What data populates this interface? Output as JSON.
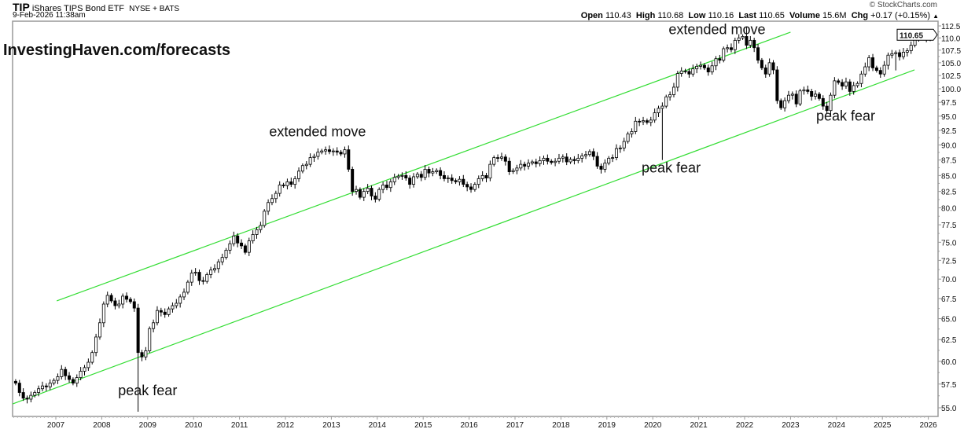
{
  "header": {
    "ticker": "TIP",
    "name": "iShares TIPS Bond ETF",
    "exchange": "NYSE + BATS",
    "datetime": "9-Feb-2026 11:38am",
    "brand": "© StockCharts.com",
    "open_label": "Open",
    "open": "110.43",
    "high_label": "High",
    "high": "110.68",
    "low_label": "Low",
    "low": "110.16",
    "last_label": "Last",
    "last": "110.65",
    "volume_label": "Volume",
    "volume": "15.6M",
    "chg_label": "Chg",
    "chg": "+0.17 (+0.15%)",
    "chg_icon": "triangle-up-icon"
  },
  "watermark": "InvestingHaven.com/forecasts",
  "chart_data": {
    "type": "candlestick",
    "interval": "monthly",
    "start_month": "2006-02",
    "yscale": "log",
    "ylim": [
      55.0,
      112.5
    ],
    "grid": false,
    "y_ticks": [
      "55.0",
      "57.5",
      "60.0",
      "62.5",
      "65.0",
      "67.5",
      "70.0",
      "72.5",
      "75.0",
      "77.5",
      "80.0",
      "82.5",
      "85.0",
      "87.5",
      "90.0",
      "92.5",
      "95.0",
      "97.5",
      "100.0",
      "102.5",
      "105.0",
      "107.5",
      "110.0",
      "112.5"
    ],
    "x_ticks": [
      "2007",
      "2008",
      "2009",
      "2010",
      "2011",
      "2012",
      "2013",
      "2014",
      "2015",
      "2016",
      "2017",
      "2018",
      "2019",
      "2020",
      "2021",
      "2022",
      "2023",
      "2024",
      "2025",
      "2026"
    ],
    "first_open": 57.8,
    "closes": [
      57.6,
      56.6,
      56.0,
      55.9,
      56.3,
      56.6,
      57.0,
      57.3,
      57.2,
      57.6,
      57.9,
      58.3,
      59.1,
      58.4,
      58.0,
      57.6,
      58.2,
      58.9,
      59.3,
      59.9,
      61.0,
      62.8,
      64.5,
      66.8,
      67.9,
      67.2,
      66.6,
      66.8,
      67.8,
      67.4,
      67.1,
      66.3,
      61.0,
      60.5,
      61.2,
      63.8,
      64.5,
      66.0,
      65.8,
      65.5,
      66.2,
      66.6,
      66.9,
      67.7,
      68.3,
      69.6,
      70.8,
      70.9,
      69.8,
      69.7,
      70.6,
      71.2,
      71.4,
      72.3,
      72.9,
      73.9,
      74.8,
      75.9,
      74.9,
      74.5,
      73.6,
      75.2,
      76.1,
      76.8,
      77.4,
      79.5,
      80.8,
      81.4,
      82.2,
      83.5,
      83.4,
      84.0,
      83.6,
      84.5,
      85.7,
      86.6,
      86.8,
      87.9,
      88.1,
      88.8,
      89.0,
      89.2,
      88.9,
      89.0,
      88.8,
      88.5,
      89.2,
      86.0,
      82.5,
      82.8,
      81.6,
      82.5,
      83.0,
      81.8,
      81.3,
      82.8,
      83.5,
      83.1,
      84.0,
      84.7,
      84.9,
      85.0,
      84.6,
      83.6,
      84.8,
      85.2,
      84.7,
      86.0,
      85.4,
      85.6,
      85.8,
      85.0,
      84.5,
      84.6,
      84.2,
      84.0,
      84.4,
      83.6,
      83.2,
      82.8,
      83.6,
      84.5,
      85.0,
      84.6,
      86.8,
      87.9,
      87.8,
      88.0,
      87.3,
      85.6,
      85.8,
      86.2,
      86.8,
      86.5,
      87.0,
      87.2,
      86.9,
      87.4,
      87.8,
      87.3,
      87.1,
      87.3,
      87.8,
      88.0,
      87.2,
      87.6,
      87.4,
      87.8,
      88.2,
      88.4,
      88.9,
      88.1,
      86.5,
      86.0,
      87.0,
      87.8,
      87.9,
      89.4,
      89.5,
      90.6,
      91.9,
      92.3,
      94.1,
      94.0,
      94.2,
      93.9,
      94.3,
      95.6,
      96.4,
      96.8,
      98.5,
      98.9,
      100.3,
      102.9,
      103.4,
      103.3,
      102.8,
      103.8,
      104.3,
      104.5,
      104.0,
      103.2,
      104.4,
      105.8,
      105.5,
      107.8,
      108.0,
      107.6,
      109.5,
      110.0,
      110.3,
      108.5,
      109.5,
      108.0,
      105.5,
      104.0,
      102.8,
      105.0,
      103.6,
      97.8,
      96.5,
      97.8,
      98.8,
      99.0,
      97.2,
      99.6,
      99.8,
      99.5,
      98.6,
      99.0,
      98.2,
      96.8,
      96.0,
      98.8,
      101.5,
      101.2,
      100.5,
      101.3,
      99.5,
      100.6,
      101.0,
      102.8,
      104.2,
      106.0,
      104.0,
      103.5,
      102.8,
      104.5,
      106.5,
      106.8,
      107.0,
      106.2,
      107.1,
      107.4,
      108.5,
      110.0,
      110.6,
      110.4,
      110.0,
      110.3,
      110.65
    ],
    "wick_extremes": [
      {
        "month": "2008-10",
        "low": 54.6
      },
      {
        "month": "2020-03",
        "low": 87.5
      },
      {
        "month": "2022-01",
        "high": 112.3
      },
      {
        "month": "2025-04",
        "low": 103.5
      }
    ],
    "trendlines": [
      {
        "from": [
          2007.02,
          67.2
        ],
        "to": [
          2023.0,
          111.2
        ],
        "color": "#33dd33"
      },
      {
        "from": [
          2006.06,
          55.4
        ],
        "to": [
          2025.7,
          103.6
        ],
        "color": "#33dd33"
      }
    ],
    "annotations": [
      {
        "text": "extended move",
        "x": 2012.7,
        "y": 91.5
      },
      {
        "text": "extended move",
        "x": 2021.4,
        "y": 110.8
      },
      {
        "text": "peak fear",
        "x": 2009.0,
        "y": 56.3
      },
      {
        "text": "peak fear",
        "x": 2020.4,
        "y": 85.5
      },
      {
        "text": "peak fear",
        "x": 2024.2,
        "y": 94.2
      }
    ],
    "last_price_label": "110.65",
    "up_color": "#ffffff",
    "down_color": "#000000",
    "last_highlight_color": "#ffff66"
  }
}
